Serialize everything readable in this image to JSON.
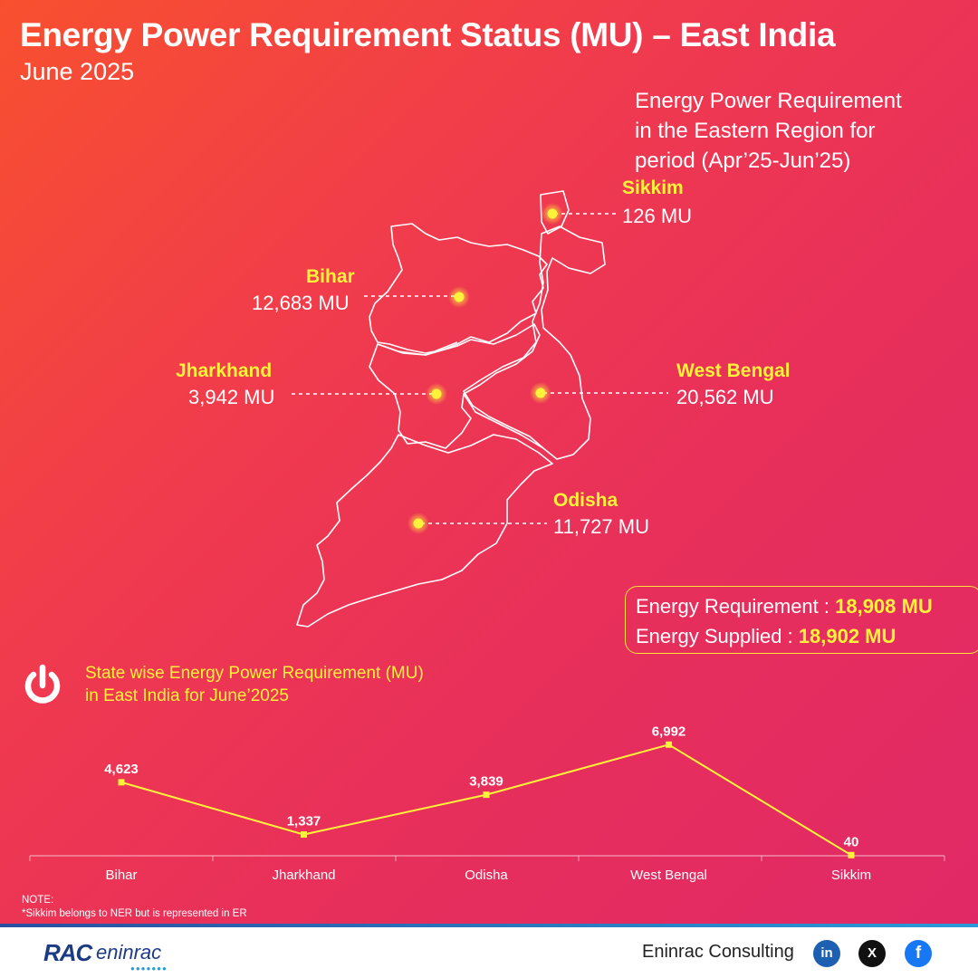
{
  "header": {
    "title": "Energy Power Requirement Status (MU) – East India",
    "subtitle": "June 2025"
  },
  "region_note": {
    "line1": "Energy Power Requirement",
    "line2": "in the Eastern Region for",
    "line3": "period (Apr’25-Jun’25)"
  },
  "states": [
    {
      "name": "Sikkim",
      "value": "126 MU"
    },
    {
      "name": "Bihar",
      "value": "12,683 MU"
    },
    {
      "name": "Jharkhand",
      "value": "3,942 MU"
    },
    {
      "name": "West Bengal",
      "value": "20,562 MU"
    },
    {
      "name": "Odisha",
      "value": "11,727 MU"
    }
  ],
  "summary": {
    "requirement_label": "Energy Requirement : ",
    "requirement_value": "18,908 MU",
    "supplied_label": "Energy Supplied : ",
    "supplied_value": "18,902 MU"
  },
  "chart_title": {
    "line1": "State wise Energy Power Requirement (MU)",
    "line2": "in East India for June’2025"
  },
  "chart_data": {
    "type": "line",
    "categories": [
      "Bihar",
      "Jharkhand",
      "Odisha",
      "West Bengal",
      "Sikkim"
    ],
    "values": [
      4623,
      1337,
      3839,
      6992,
      40
    ],
    "data_labels": [
      "4,623",
      "1,337",
      "3,839",
      "6,992",
      "40"
    ],
    "ylim": [
      0,
      8000
    ],
    "grid": false,
    "line_color": "#fff23a"
  },
  "note": {
    "line1": "NOTE:",
    "line2": "*Sikkim belongs to NER but is represented in ER"
  },
  "footer": {
    "logo_rac": "RAC",
    "logo_eninrac": "eninrac",
    "company": "Eninrac Consulting",
    "linkedin": "in",
    "x": "X",
    "facebook": "f"
  },
  "colors": {
    "accent_yellow": "#fff23a",
    "gradient_start": "#f8502f",
    "gradient_end": "#e02868",
    "footer_blue": "#1c3b84"
  }
}
